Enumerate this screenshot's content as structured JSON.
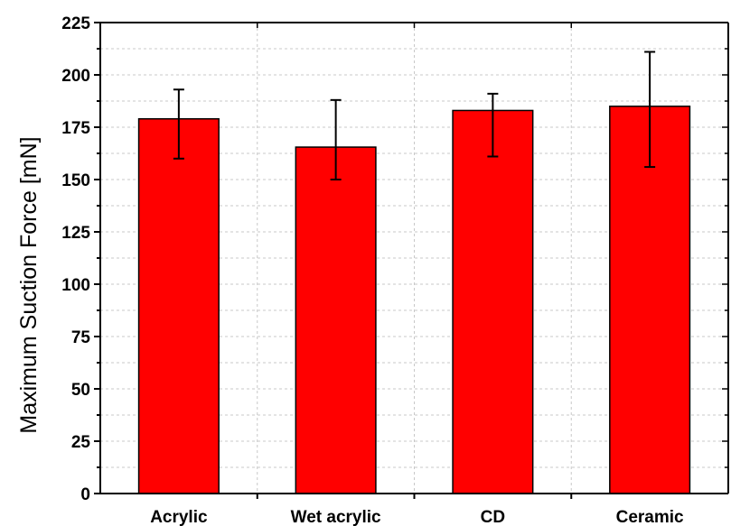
{
  "chart_data": {
    "type": "bar",
    "title": "",
    "xlabel": "",
    "ylabel": "Maximum Suction Force [mN]",
    "categories": [
      "Acrylic",
      "Wet acrylic",
      "CD",
      "Ceramic"
    ],
    "values": [
      179,
      165.5,
      183,
      185
    ],
    "error_low": [
      160,
      150,
      161,
      156
    ],
    "error_high": [
      193,
      188,
      191,
      211
    ],
    "ylim": [
      0,
      225
    ],
    "yticks": [
      0,
      25,
      50,
      75,
      100,
      125,
      150,
      175,
      200,
      225
    ],
    "grid": true,
    "bar_color": "#ff0000",
    "bar_edge_color": "#000000"
  }
}
